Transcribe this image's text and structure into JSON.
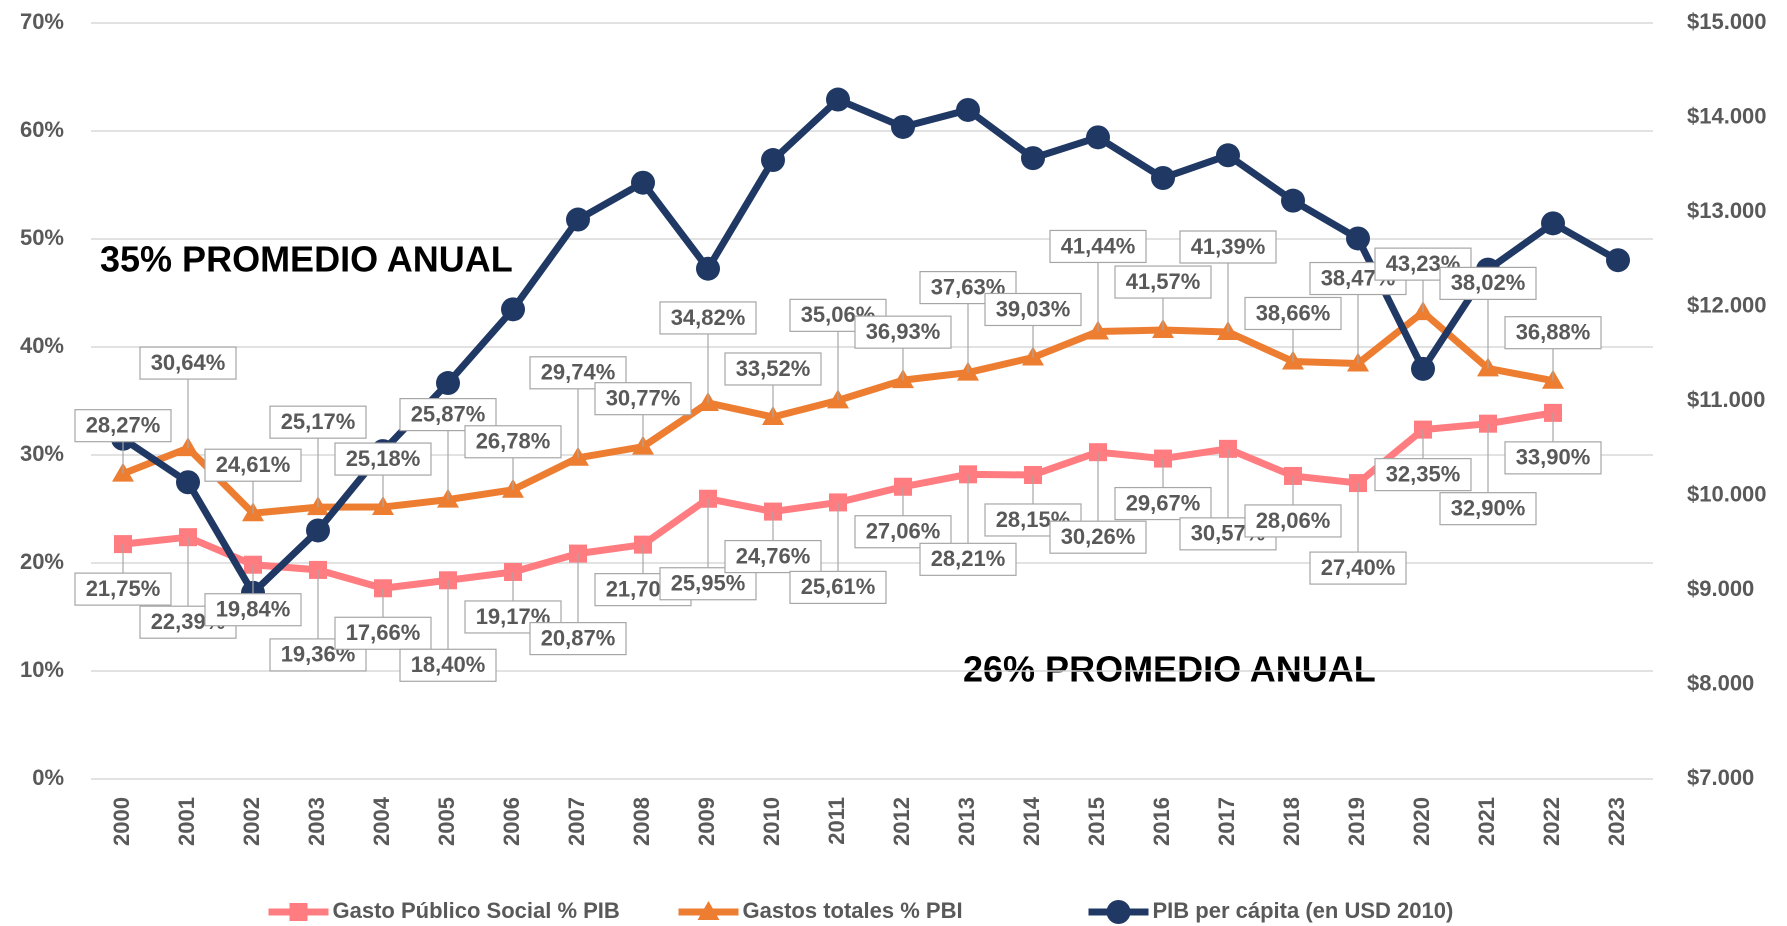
{
  "chart_data": {
    "type": "line",
    "categories": [
      "2000",
      "2001",
      "2002",
      "2003",
      "2004",
      "2005",
      "2006",
      "2007",
      "2008",
      "2009",
      "2010",
      "2011",
      "2012",
      "2013",
      "2014",
      "2015",
      "2016",
      "2017",
      "2018",
      "2019",
      "2020",
      "2021",
      "2022",
      "2023"
    ],
    "series": [
      {
        "name": "Gasto Público Social % PIB",
        "color": "#ff7c80",
        "marker": "square",
        "values": [
          21.75,
          22.39,
          19.84,
          19.36,
          17.66,
          18.4,
          19.17,
          20.87,
          21.7,
          25.95,
          24.76,
          25.61,
          27.06,
          28.21,
          28.15,
          30.26,
          29.67,
          30.57,
          28.06,
          27.4,
          32.35,
          32.9,
          33.9,
          null
        ],
        "value_labels": [
          "21,75%",
          "22,39%",
          "19,84%",
          "19,36%",
          "17,66%",
          "18,40%",
          "19,17%",
          "20,87%",
          "21,70%",
          "25,95%",
          "24,76%",
          "25,61%",
          "27,06%",
          "28,21%",
          "28,15%",
          "30,26%",
          "29,67%",
          "30,57%",
          "28,06%",
          "27,40%",
          "32,35%",
          "32,90%",
          "33,90%",
          null
        ]
      },
      {
        "name": "Gastos totales % PBI",
        "color": "#ed7d31",
        "marker": "triangle",
        "values": [
          28.27,
          30.64,
          24.61,
          25.17,
          25.18,
          25.87,
          26.78,
          29.74,
          30.77,
          34.82,
          33.52,
          35.06,
          36.93,
          37.63,
          39.03,
          41.44,
          41.57,
          41.39,
          38.66,
          38.47,
          43.23,
          38.02,
          36.88,
          null
        ],
        "value_labels": [
          "28,27%",
          "30,64%",
          "24,61%",
          "25,17%",
          "25,18%",
          "25,87%",
          "26,78%",
          "29,74%",
          "30,77%",
          "34,82%",
          "33,52%",
          "35,06%",
          "36,93%",
          "37,63%",
          "39,03%",
          "41,44%",
          "41,57%",
          "41,39%",
          "38,66%",
          "38,47%",
          "43,23%",
          "38,02%",
          "36,88%",
          null
        ]
      },
      {
        "name": "PIB per cápita (en USD 2010)",
        "color": "#203864",
        "marker": "circle",
        "axis": "y2",
        "values": [
          10600,
          10140,
          8970,
          9630,
          10470,
          11190,
          11970,
          12920,
          13310,
          12400,
          13550,
          14190,
          13900,
          14080,
          13570,
          13790,
          13360,
          13600,
          13120,
          12720,
          11340,
          12390,
          12880,
          12490
        ]
      }
    ],
    "ylim": [
      0,
      70
    ],
    "yticks": [
      {
        "value": 0,
        "label": "0%"
      },
      {
        "value": 10,
        "label": "10%"
      },
      {
        "value": 20,
        "label": "20%"
      },
      {
        "value": 30,
        "label": "30%"
      },
      {
        "value": 40,
        "label": "40%"
      },
      {
        "value": 50,
        "label": "50%"
      },
      {
        "value": 60,
        "label": "60%"
      },
      {
        "value": 70,
        "label": "70%"
      }
    ],
    "y2lim": [
      7000,
      15000
    ],
    "y2ticks": [
      {
        "value": 7000,
        "label": "$7.000"
      },
      {
        "value": 8000,
        "label": "$8.000"
      },
      {
        "value": 9000,
        "label": "$9.000"
      },
      {
        "value": 10000,
        "label": "$10.000"
      },
      {
        "value": 11000,
        "label": "$11.000"
      },
      {
        "value": 12000,
        "label": "$12.000"
      },
      {
        "value": 13000,
        "label": "$13.000"
      },
      {
        "value": 14000,
        "label": "$14.000"
      },
      {
        "value": 15000,
        "label": "$15.000"
      }
    ],
    "annotations": [
      "35% PROMEDIO ANUAL",
      "26% PROMEDIO ANUAL"
    ],
    "grid": true,
    "legend": "bottom"
  }
}
